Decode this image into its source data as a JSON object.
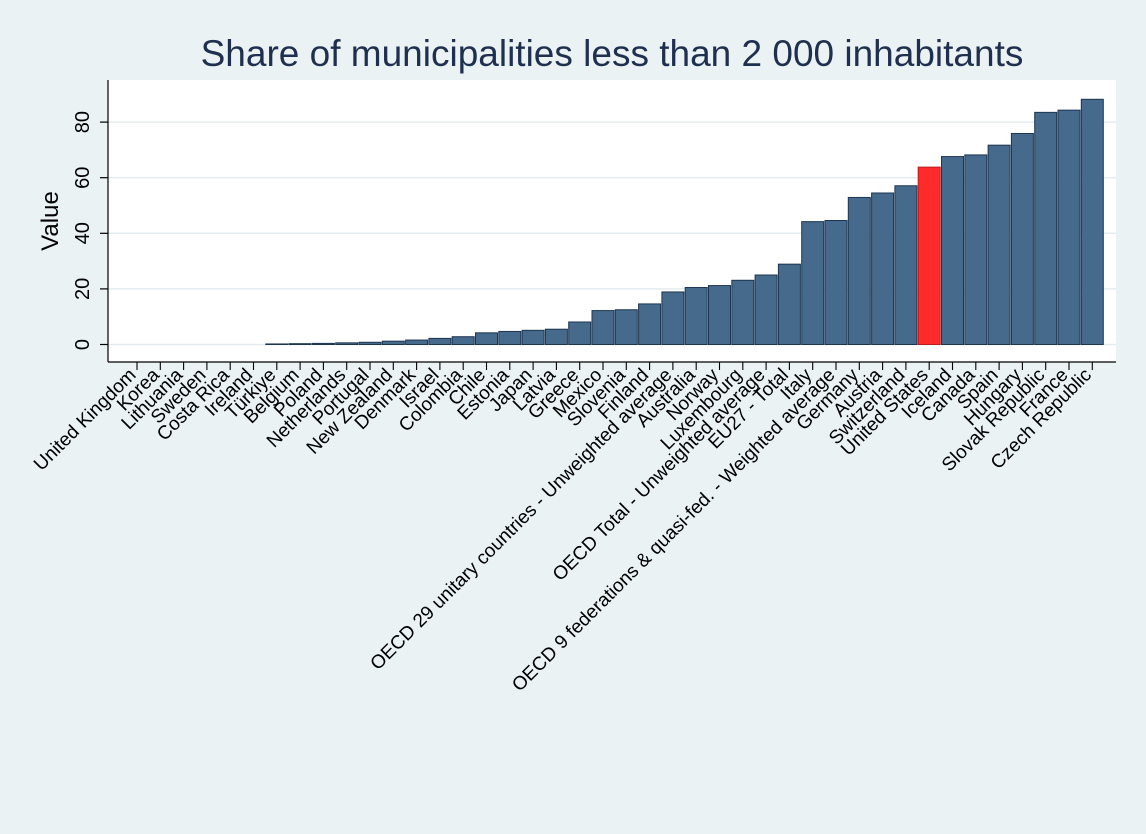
{
  "chart_data": {
    "type": "bar",
    "title": "Share of municipalities less than 2 000 inhabitants",
    "xlabel": "",
    "ylabel": "Value",
    "ylim": [
      -6,
      94
    ],
    "yticks": [
      0,
      20,
      40,
      60,
      80
    ],
    "grid": true,
    "legend": "none",
    "bar_color": "#456a8b",
    "highlight_color": "#ff2a2a",
    "highlight_label_color": "#ff0000",
    "highlight_category": "United States",
    "categories": [
      "United Kingdom",
      "Korea",
      "Lithuania",
      "Sweden",
      "Costa Rica",
      "Ireland",
      "Türkiye",
      "Belgium",
      "Poland",
      "Netherlands",
      "Portugal",
      "New Zealand",
      "Denmark",
      "Israel",
      "Colombia",
      "Chile",
      "Estonia",
      "Japan",
      "Latvia",
      "Greece",
      "Mexico",
      "Slovenia",
      "Finland",
      "OECD 29 unitary countries - Unweighted average",
      "Australia",
      "Norway",
      "Luxembourg",
      "OECD Total - Unweighted average",
      "EU27 - Total",
      "Italy",
      "OECD 9 federations & quasi-fed. - Weighted average",
      "Germany",
      "Austria",
      "Switzerland",
      "United States",
      "Iceland",
      "Canada",
      "Spain",
      "Hungary",
      "Slovak Republic",
      "France",
      "Czech Republic"
    ],
    "values": [
      0,
      0,
      0,
      0,
      0,
      0,
      0.2,
      0.3,
      0.4,
      0.6,
      0.8,
      1.2,
      1.6,
      2.2,
      2.8,
      4.2,
      4.7,
      5.1,
      5.5,
      8.1,
      12.2,
      12.5,
      14.6,
      18.9,
      20.5,
      21.2,
      23.1,
      25.0,
      28.9,
      44.2,
      44.6,
      52.9,
      54.5,
      57.1,
      63.8,
      67.6,
      68.2,
      71.7,
      75.9,
      83.5,
      84.3,
      88.2
    ]
  }
}
